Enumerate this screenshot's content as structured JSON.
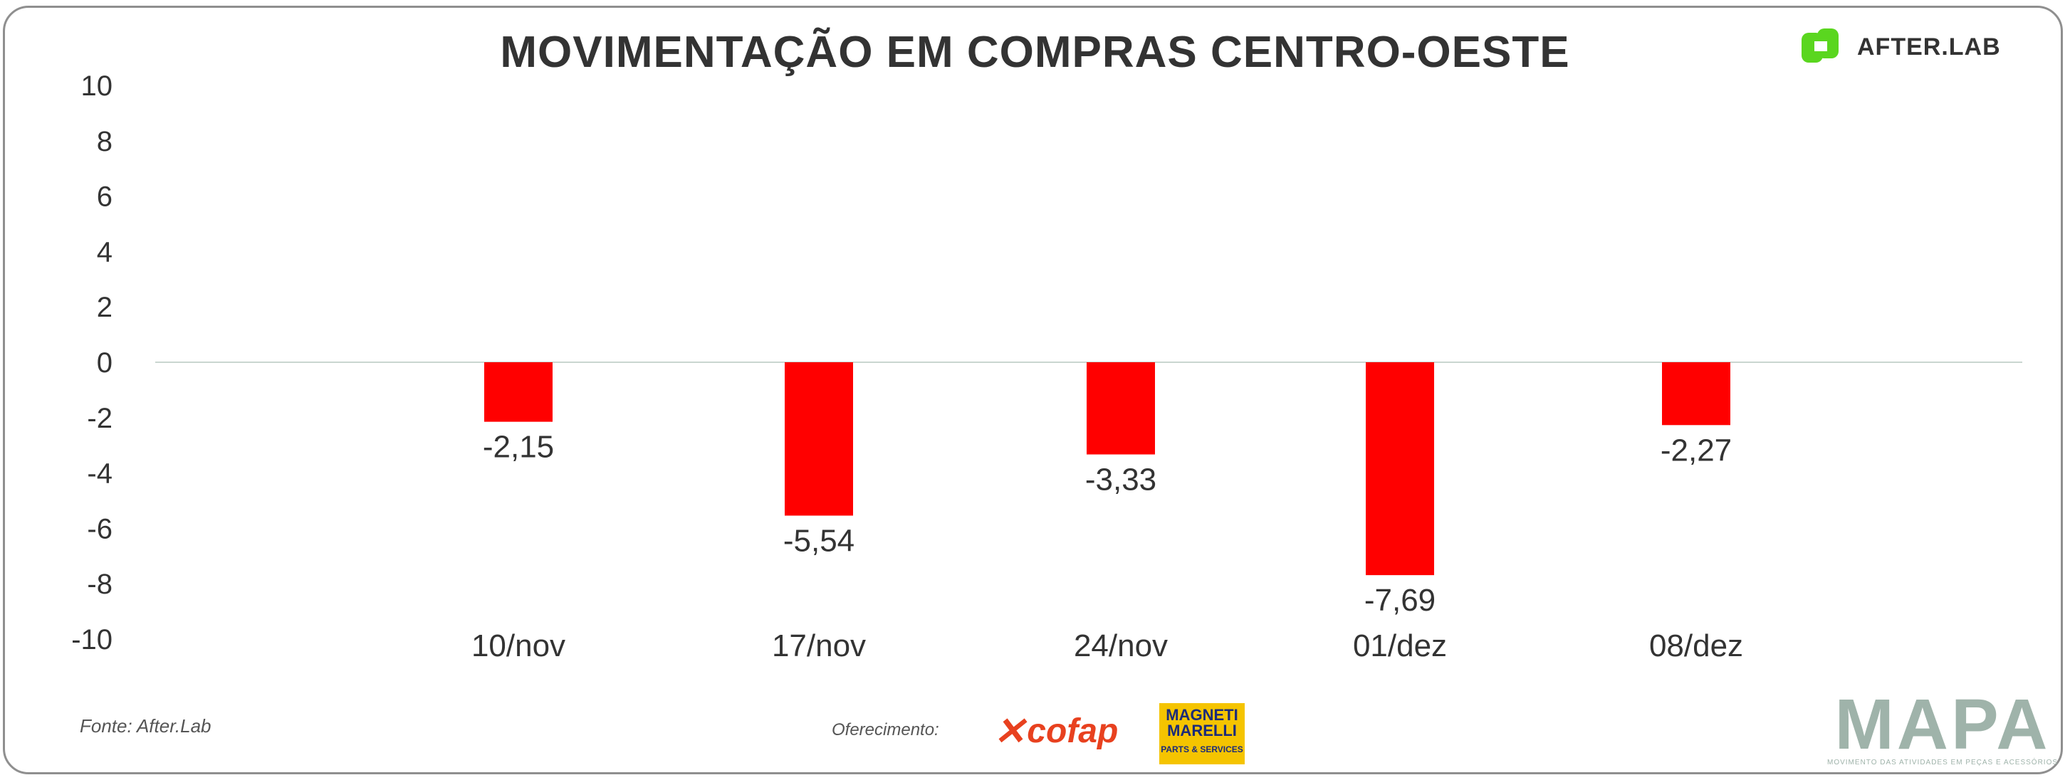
{
  "title": "MOVIMENTAÇÃO EM COMPRAS CENTRO-OESTE",
  "brand": {
    "name": "AFTER.LAB",
    "color": "#5ad61f"
  },
  "footer": {
    "source": "Fonte: After.Lab",
    "offer": "Oferecimento:",
    "sponsor1": "cofap",
    "sponsor2_line1": "MAGNETI",
    "sponsor2_line2": "MARELLI",
    "sponsor2_sub": "PARTS & SERVICES",
    "mapa": "MAPA",
    "mapa_sub": "MOVIMENTO DAS ATIVIDADES EM PEÇAS E ACESSÓRIOS"
  },
  "chart_data": {
    "type": "bar",
    "categories": [
      "10/nov",
      "17/nov",
      "24/nov",
      "01/dez",
      "08/dez"
    ],
    "values": [
      -2.15,
      -5.54,
      -3.33,
      -7.69,
      -2.27
    ],
    "data_labels": [
      "-2,15",
      "-5,54",
      "-3,33",
      "-7,69",
      "-2,27"
    ],
    "ylim": [
      -10,
      10
    ],
    "yticks": [
      10,
      8,
      6,
      4,
      2,
      0,
      -2,
      -4,
      -6,
      -8,
      -10
    ],
    "bar_color": "#ff0000",
    "grid": false
  }
}
